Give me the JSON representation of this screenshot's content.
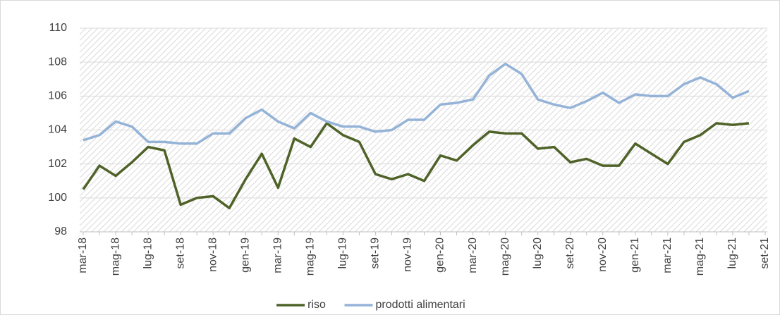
{
  "chart_data": {
    "type": "line",
    "categories": [
      "mar-18",
      null,
      "mag-18",
      null,
      "lug-18",
      null,
      "set-18",
      null,
      "nov-18",
      null,
      "gen-19",
      null,
      "mar-19",
      null,
      "mag-19",
      null,
      "lug-19",
      null,
      "set-19",
      null,
      "nov-19",
      null,
      "gen-20",
      null,
      "mar-20",
      null,
      "mag-20",
      null,
      "lug-20",
      null,
      "set-20",
      null,
      "nov-20",
      null,
      "gen-21",
      null,
      "mar-21",
      null,
      "mag-21",
      null,
      "lug-21",
      null,
      "set-21"
    ],
    "series": [
      {
        "name": "riso",
        "color": "#4f6228",
        "values": [
          100.5,
          101.9,
          101.3,
          102.1,
          103.0,
          102.8,
          99.6,
          100.0,
          100.1,
          99.4,
          101.1,
          102.6,
          100.6,
          103.5,
          103.0,
          104.4,
          103.7,
          103.3,
          101.4,
          101.1,
          101.4,
          101.0,
          102.5,
          102.2,
          103.1,
          103.9,
          103.8,
          103.8,
          102.9,
          103.0,
          102.1,
          102.3,
          101.9,
          101.9,
          103.2,
          102.6,
          102.0,
          103.3,
          103.7,
          104.4,
          104.3,
          104.4,
          null
        ]
      },
      {
        "name": "prodotti alimentari",
        "color": "#95b3d7",
        "values": [
          103.4,
          103.7,
          104.5,
          104.2,
          103.3,
          103.3,
          103.2,
          103.2,
          103.8,
          103.8,
          104.7,
          105.2,
          104.5,
          104.1,
          105.0,
          104.5,
          104.2,
          104.2,
          103.9,
          104.0,
          104.6,
          104.6,
          105.5,
          105.6,
          105.8,
          107.2,
          107.9,
          107.3,
          105.8,
          105.5,
          105.3,
          105.7,
          106.2,
          105.6,
          106.1,
          106.0,
          106.0,
          106.7,
          107.1,
          106.7,
          105.9,
          106.3,
          null
        ]
      }
    ],
    "ylim": [
      98,
      110
    ],
    "yticks": [
      98,
      100,
      102,
      104,
      106,
      108,
      110
    ],
    "grid": true,
    "legend": "bottom"
  }
}
